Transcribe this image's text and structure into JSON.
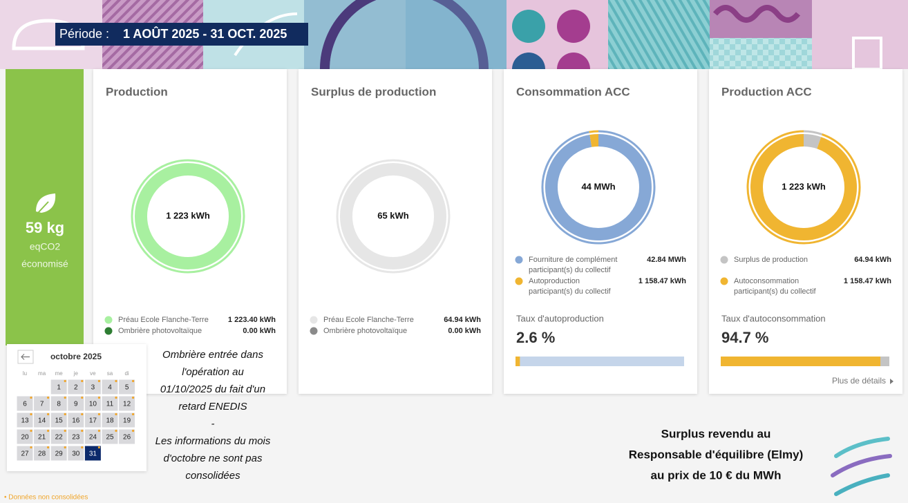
{
  "header": {
    "period_label": "Période :",
    "period": "1 AOÛT 2025 - 31 OCT. 2025"
  },
  "co2": {
    "amount": "59 kg",
    "unit": "eqCO2",
    "caption": "économisé"
  },
  "cards": [
    {
      "title": "Production",
      "center": "1 223 kWh",
      "legend": [
        {
          "label": [
            "Préau Ecole Flanche-Terre"
          ],
          "value": {
            "value": 1223.4,
            "label": "1 223.40 kWh"
          },
          "color": "#a8f0a0"
        },
        {
          "label": [
            "Ombrière photovoltaïque"
          ],
          "value": {
            "value": 0.0,
            "label": "0.00 kWh"
          },
          "color": "#2e7d32"
        }
      ]
    },
    {
      "title": "Surplus de production",
      "center": "65 kWh",
      "legend": [
        {
          "label": [
            "Préau Ecole Flanche-Terre"
          ],
          "value": {
            "value": 64.94,
            "label": "64.94 kWh"
          },
          "color": "#e6e6e6"
        },
        {
          "label": [
            "Ombrière photovoltaïque"
          ],
          "value": {
            "value": 0.0,
            "label": "0.00 kWh"
          },
          "color": "#8a8a8a"
        }
      ]
    },
    {
      "title": "Consommation ACC",
      "center": "44 MWh",
      "legend": [
        {
          "label": [
            "Fourniture de complément",
            "participant(s) du collectif"
          ],
          "value": {
            "value": 42840,
            "label": "42.84 MWh"
          },
          "color": "#86a8d6"
        },
        {
          "label": [
            "Autoproduction",
            "participant(s) du collectif"
          ],
          "value": {
            "value": 1158.47,
            "label": "1 158.47 kWh"
          },
          "color": "#f0b531"
        }
      ],
      "rate_label": "Taux d'autoproduction",
      "rate": {
        "value": 2.6,
        "label": "2.6 %"
      },
      "rate_color": "#f0b531",
      "rate_track": "#c5d5ea"
    },
    {
      "title": "Production ACC",
      "center": "1 223 kWh",
      "legend": [
        {
          "label": [
            "Surplus de production"
          ],
          "value": {
            "value": 64.94,
            "label": "64.94 kWh"
          },
          "color": "#c4c4c4"
        },
        {
          "label": [
            "Autoconsommation",
            "participant(s) du collectif"
          ],
          "value": {
            "value": 1158.47,
            "label": "1 158.47 kWh"
          },
          "color": "#f0b531"
        }
      ],
      "rate_label": "Taux d'autoconsommation",
      "rate": {
        "value": 94.7,
        "label": "94.7 %"
      },
      "rate_color": "#f0b531",
      "rate_track": "#c4c4c4",
      "link": "Plus de détails"
    }
  ],
  "calendar": {
    "month": "octobre 2025",
    "weekdays": [
      "lu",
      "ma",
      "me",
      "je",
      "ve",
      "sa",
      "di"
    ],
    "days": [
      1,
      2,
      3,
      4,
      5,
      6,
      7,
      8,
      9,
      10,
      11,
      12,
      13,
      14,
      15,
      16,
      17,
      18,
      19,
      20,
      21,
      22,
      23,
      24,
      25,
      26,
      27,
      28,
      29,
      30,
      31
    ],
    "selected_day": 31
  },
  "note": [
    "Ombrière entrée dans",
    "l'opération au",
    "01/10/2025 du fait d'un",
    "retard ENEDIS",
    "-",
    "Les informations du mois",
    "d'octobre ne sont pas",
    "consolidées"
  ],
  "resale": [
    "Surplus revendu au",
    "Responsable d'équilibre (Elmy)",
    "au prix de 10 € du MWh"
  ],
  "footnote": "• Données non consolidées"
}
